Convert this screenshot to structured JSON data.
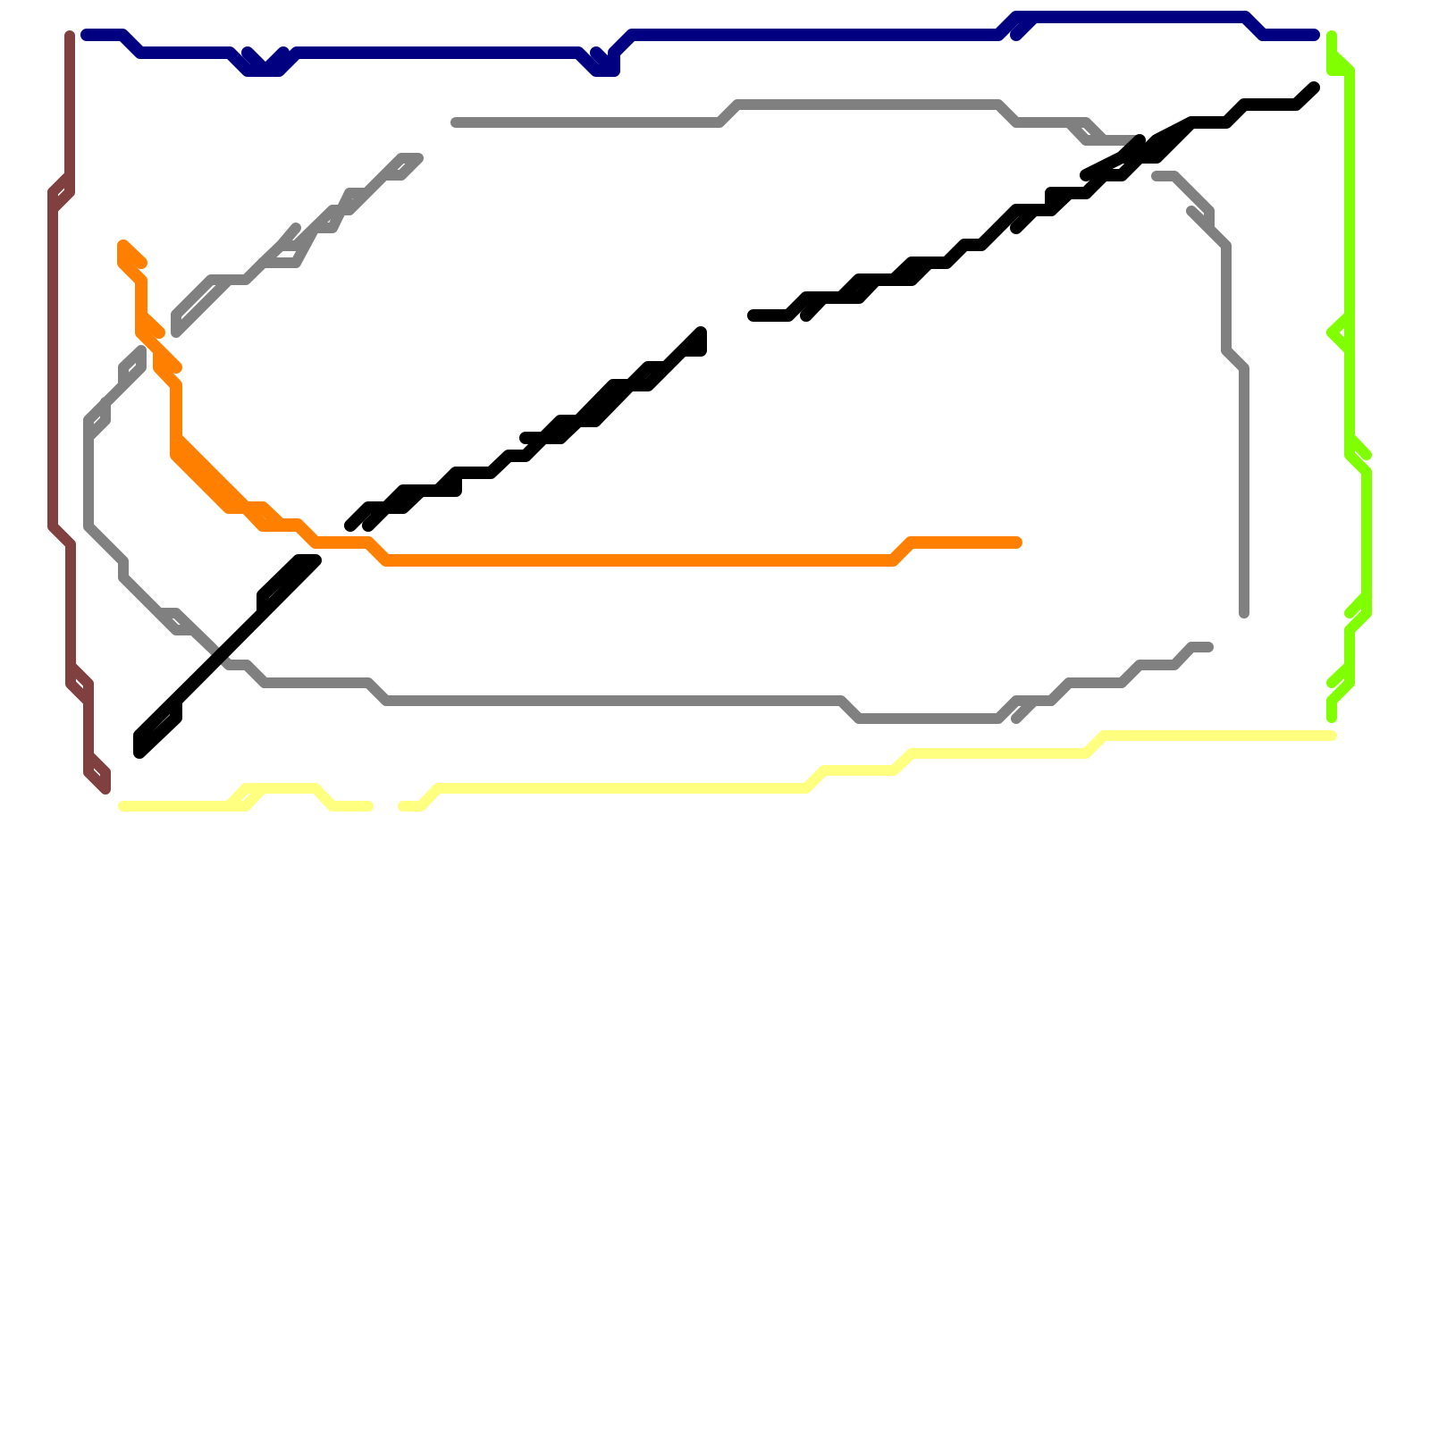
{
  "map": {
    "type": "transit-line-map",
    "background": "#ffffff",
    "lines": [
      {
        "id": "navy",
        "color": "#000080"
      },
      {
        "id": "brown",
        "color": "#804040"
      },
      {
        "id": "gray",
        "color": "#808080"
      },
      {
        "id": "orange",
        "color": "#ff8000"
      },
      {
        "id": "black",
        "color": "#000000"
      },
      {
        "id": "lime",
        "color": "#80ff00"
      },
      {
        "id": "yellow",
        "color": "#ffff80"
      }
    ]
  }
}
